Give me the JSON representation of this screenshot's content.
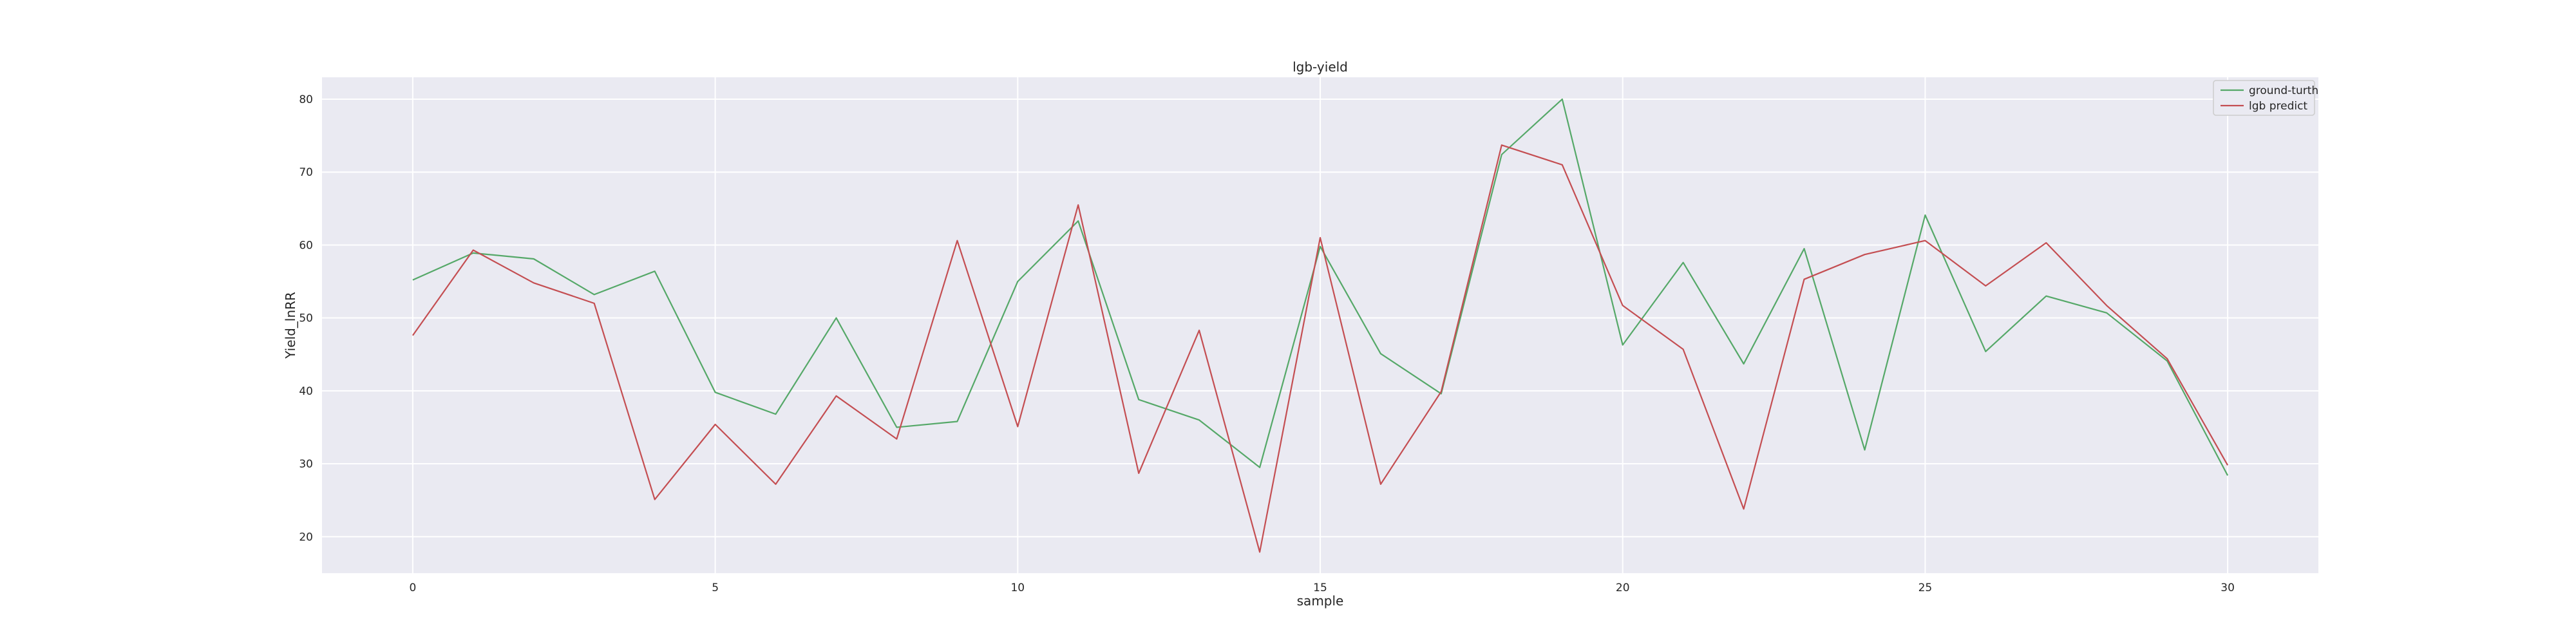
{
  "chart_data": {
    "type": "line",
    "title": "lgb-yield",
    "xlabel": "sample",
    "ylabel": "Yield_lnRR",
    "xlim": [
      -1.5,
      31.5
    ],
    "ylim": [
      15,
      83
    ],
    "xticks": [
      0,
      5,
      10,
      15,
      20,
      25,
      30
    ],
    "yticks": [
      20,
      30,
      40,
      50,
      60,
      70,
      80
    ],
    "grid": true,
    "legend_position": "top-right",
    "x": [
      0,
      1,
      2,
      3,
      4,
      5,
      6,
      7,
      8,
      9,
      10,
      11,
      12,
      13,
      14,
      15,
      16,
      17,
      18,
      19,
      20,
      21,
      22,
      23,
      24,
      25,
      26,
      27,
      28,
      29,
      30
    ],
    "series": [
      {
        "name": "ground-turth",
        "color": "#55a868",
        "values": [
          55.2,
          58.9,
          58.1,
          53.2,
          56.4,
          39.8,
          36.8,
          50.0,
          35.0,
          35.8,
          55.0,
          63.3,
          38.8,
          36.0,
          29.5,
          59.8,
          45.1,
          39.6,
          72.4,
          80.0,
          46.3,
          57.6,
          43.7,
          59.5,
          31.9,
          64.1,
          45.4,
          53.0,
          50.7,
          44.1,
          28.4
        ]
      },
      {
        "name": "lgb predict",
        "color": "#c44e52",
        "values": [
          47.6,
          59.3,
          54.8,
          52.0,
          25.1,
          35.4,
          27.2,
          39.3,
          33.4,
          60.6,
          35.1,
          65.5,
          28.7,
          48.3,
          17.9,
          61.0,
          27.2,
          39.9,
          73.7,
          71.0,
          51.7,
          45.7,
          23.8,
          55.3,
          58.7,
          60.6,
          54.4,
          60.3,
          51.7,
          44.4,
          29.8
        ]
      }
    ]
  }
}
